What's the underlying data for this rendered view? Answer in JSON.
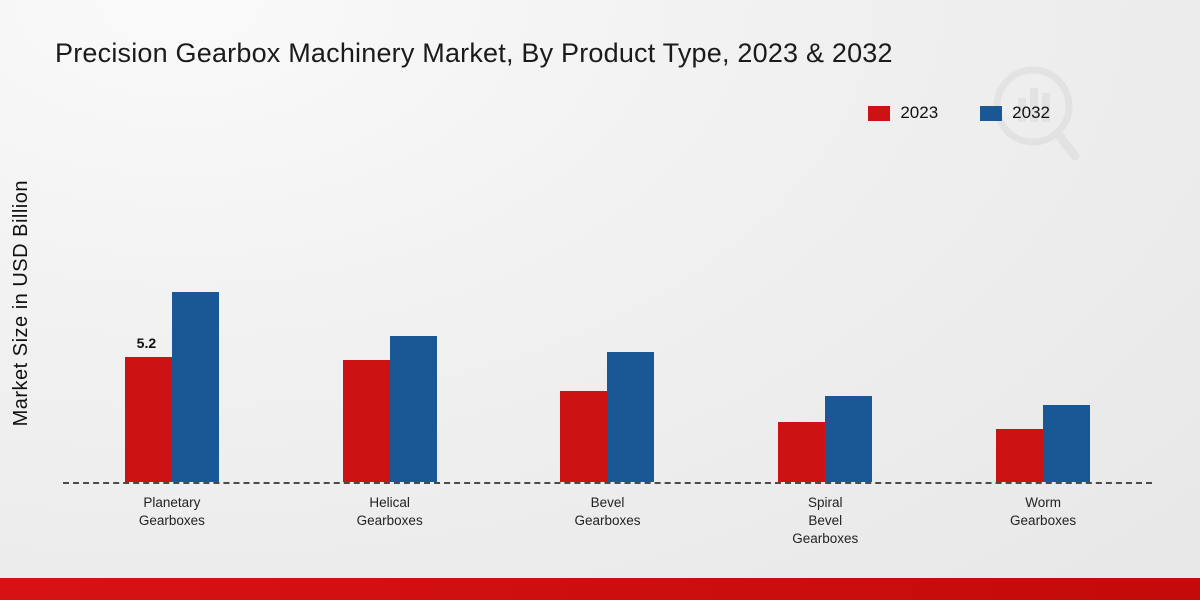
{
  "title": "Precision Gearbox Machinery Market, By Product Type, 2023 & 2032",
  "chart_data": {
    "type": "bar",
    "title": "Precision Gearbox Machinery Market, By Product Type, 2023 & 2032",
    "ylabel": "Market Size in USD Billion",
    "xlabel": "",
    "ylim": [
      0,
      13
    ],
    "grid": false,
    "legend_position": "top-right",
    "baseline_style": "dashed",
    "categories": [
      "Planetary\nGearboxes",
      "Helical\nGearboxes",
      "Bevel\nGearboxes",
      "Spiral\nBevel\nGearboxes",
      "Worm\nGearboxes"
    ],
    "series": [
      {
        "name": "2023",
        "color": "#cc1212",
        "values": [
          5.2,
          5.1,
          3.8,
          2.5,
          2.2
        ],
        "data_labels": [
          "5.2",
          "",
          "",
          "",
          ""
        ]
      },
      {
        "name": "2032",
        "color": "#1a5795",
        "values": [
          7.9,
          6.1,
          5.4,
          3.6,
          3.2
        ],
        "data_labels": [
          "",
          "",
          "",
          "",
          ""
        ]
      }
    ]
  },
  "footer": {
    "color": "#c40a0a"
  },
  "watermark": {
    "name": "market-research-logo"
  }
}
